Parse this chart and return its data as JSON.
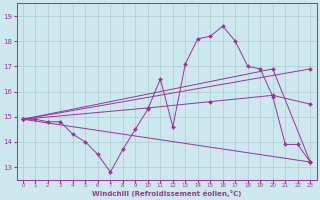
{
  "bg_color": "#cce8ee",
  "grid_color": "#aacccc",
  "line_color": "#993399",
  "marker_color": "#993399",
  "xlabel": "Windchill (Refroidissement éolien,°C)",
  "xlabel_color": "#993399",
  "tick_color": "#993399",
  "line1_x": [
    0,
    1,
    2,
    3,
    4,
    5,
    6,
    7,
    8,
    9,
    10,
    11,
    12,
    13,
    14,
    15,
    16,
    17,
    18,
    19,
    20,
    21,
    22,
    23
  ],
  "line1_y": [
    14.9,
    14.9,
    14.8,
    14.8,
    14.3,
    14.0,
    13.5,
    12.8,
    13.7,
    14.5,
    15.3,
    16.5,
    14.6,
    17.1,
    18.1,
    18.2,
    18.6,
    18.0,
    17.0,
    16.9,
    15.8,
    13.9,
    13.9,
    13.2
  ],
  "line2_x": [
    0,
    20,
    23
  ],
  "line2_y": [
    14.9,
    16.9,
    13.2
  ],
  "line3_x": [
    0,
    23
  ],
  "line3_y": [
    14.9,
    13.2
  ],
  "line4_x": [
    0,
    23
  ],
  "line4_y": [
    14.9,
    16.9
  ],
  "line5_x": [
    0,
    10,
    15,
    20,
    23
  ],
  "line5_y": [
    14.9,
    15.35,
    15.6,
    15.85,
    15.5
  ],
  "ylim": [
    12.5,
    19.5
  ],
  "xlim": [
    -0.5,
    23.5
  ],
  "yticks": [
    13,
    14,
    15,
    16,
    17,
    18,
    19
  ],
  "xticks": [
    0,
    1,
    2,
    3,
    4,
    5,
    6,
    7,
    8,
    9,
    10,
    11,
    12,
    13,
    14,
    15,
    16,
    17,
    18,
    19,
    20,
    21,
    22,
    23
  ]
}
